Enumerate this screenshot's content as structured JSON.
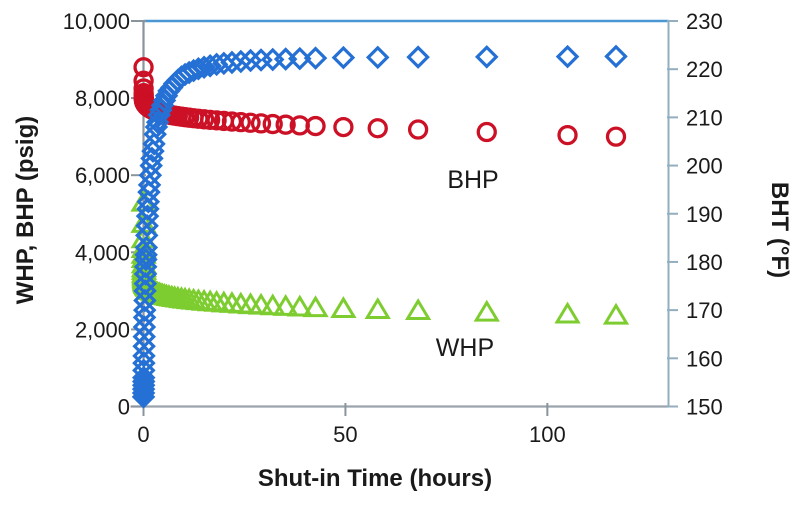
{
  "chart_data": {
    "type": "scatter",
    "title": "",
    "xlabel": "Shut-in Time (hours)",
    "ylabel_left": "WHP, BHP (psig)",
    "ylabel_right": "BHT (°F)",
    "xlim": [
      0,
      130
    ],
    "grid": false,
    "legend_position": "none (series labeled by in-plot text annotations)",
    "x_ticks": {
      "values": [
        0,
        50,
        100
      ],
      "labels": [
        "0",
        "50",
        "100"
      ]
    },
    "left_axis": {
      "range": [
        0,
        10000
      ],
      "tick_values": [
        0,
        2000,
        4000,
        6000,
        8000,
        10000
      ],
      "tick_labels": [
        "0",
        "2,000",
        "4,000",
        "6,000",
        "8,000",
        "10,000"
      ]
    },
    "right_axis": {
      "range": [
        150,
        230
      ],
      "tick_values": [
        150,
        160,
        170,
        180,
        190,
        200,
        210,
        220,
        230
      ],
      "tick_labels": [
        "150",
        "160",
        "170",
        "180",
        "190",
        "200",
        "210",
        "220",
        "230"
      ]
    },
    "frame_colors": {
      "top": "#4b97d3",
      "left": "#8a949c",
      "bottom": "#9aa4ad",
      "right": "#93aebe",
      "tick_left": "#8a949c",
      "tick_bottom": "#8a949c",
      "tick_right": "#93aebe"
    },
    "annotations": [
      {
        "text": "BHP",
        "t": 81.6,
        "value_left": 5900
      },
      {
        "text": "WHP",
        "t": 79.6,
        "value_left": 1540
      }
    ],
    "shared_time_hours": [
      0.01,
      0.02,
      0.03,
      0.04,
      0.05,
      0.06,
      0.08,
      0.1,
      0.12,
      0.15,
      0.18,
      0.22,
      0.26,
      0.3,
      0.35,
      0.4,
      0.45,
      0.5,
      0.55,
      0.6,
      0.65,
      0.7,
      0.8,
      0.9,
      1.0,
      1.1,
      1.2,
      1.35,
      1.5,
      1.7,
      1.9,
      2.1,
      2.35,
      2.6,
      2.9,
      3.2,
      3.5,
      3.9,
      4.3,
      4.7,
      5.2,
      5.7,
      6.3,
      7.0,
      7.7,
      8.5,
      9.4,
      10.3,
      11.3,
      12.4,
      13.6,
      15.0,
      16.5,
      18.1,
      19.9,
      21.9,
      24.1,
      26.5,
      29.1,
      32,
      35.2,
      38.7,
      42.6,
      49.5,
      58,
      68,
      85,
      105,
      117
    ],
    "series": [
      {
        "name": "WHP",
        "axis": "left",
        "units": "psig",
        "marker": "triangle",
        "color": "#7ecd30",
        "values": [
          5300,
          4750,
          4350,
          4100,
          3950,
          3840,
          3700,
          3600,
          3530,
          3460,
          3410,
          3365,
          3330,
          3300,
          3272,
          3250,
          3232,
          3215,
          3200,
          3188,
          3176,
          3165,
          3146,
          3130,
          3115,
          3101,
          3089,
          3072,
          3057,
          3040,
          3024,
          3010,
          2994,
          2980,
          2965,
          2951,
          2938,
          2923,
          2909,
          2896,
          2882,
          2869,
          2855,
          2840,
          2827,
          2813,
          2799,
          2786,
          2773,
          2759,
          2746,
          2731,
          2717,
          2703,
          2689,
          2674,
          2659,
          2644,
          2629,
          2613,
          2597,
          2581,
          2565,
          2541,
          2516,
          2490,
          2448,
          2400,
          2370
        ]
      },
      {
        "name": "BHP",
        "axis": "left",
        "units": "psig",
        "marker": "circle",
        "color": "#cc1025",
        "values": [
          8800,
          8450,
          8250,
          8130,
          8060,
          8020,
          7980,
          7950,
          7935,
          7920,
          7905,
          7895,
          7885,
          7875,
          7865,
          7855,
          7845,
          7840,
          7832,
          7825,
          7818,
          7810,
          7800,
          7790,
          7780,
          7770,
          7762,
          7750,
          7740,
          7728,
          7715,
          7705,
          7692,
          7680,
          7668,
          7656,
          7645,
          7632,
          7620,
          7608,
          7596,
          7584,
          7571,
          7558,
          7545,
          7532,
          7518,
          7505,
          7492,
          7478,
          7465,
          7450,
          7436,
          7422,
          7407,
          7392,
          7376,
          7360,
          7344,
          7327,
          7310,
          7292,
          7274,
          7248,
          7218,
          7185,
          7120,
          7040,
          7000
        ]
      },
      {
        "name": "BHT",
        "axis": "right",
        "units": "°F",
        "marker": "diamond",
        "color": "#2570d4",
        "values": [
          152,
          152.8,
          153.6,
          154.4,
          155.2,
          156,
          157.5,
          159,
          160.5,
          162.5,
          164.5,
          166.5,
          168.5,
          170,
          172,
          174,
          175.5,
          177.5,
          179,
          180.5,
          181.5,
          183,
          185.5,
          187.5,
          189.5,
          191,
          192.5,
          194.5,
          196,
          198,
          200,
          201.5,
          203,
          204.5,
          206.5,
          208,
          209,
          210.5,
          211.5,
          212.5,
          213.5,
          214.5,
          215.5,
          216.2,
          217,
          217.7,
          218.4,
          218.9,
          219.3,
          219.7,
          220.1,
          220.4,
          220.7,
          221,
          221.2,
          221.4,
          221.6,
          221.8,
          221.9,
          222,
          222.1,
          222.2,
          222.3,
          222.4,
          222.45,
          222.5,
          222.55,
          222.6,
          222.65
        ]
      }
    ]
  }
}
